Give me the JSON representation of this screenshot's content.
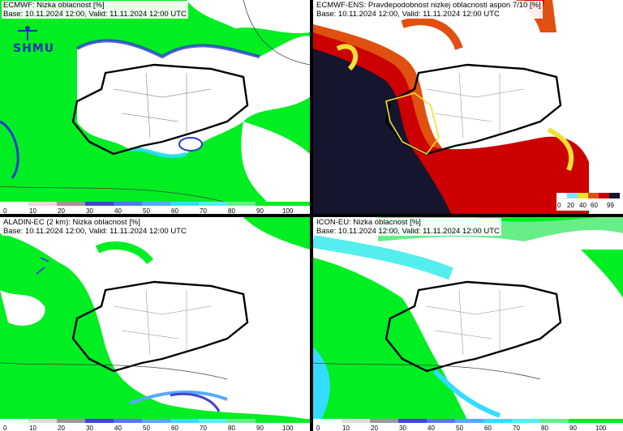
{
  "colors": {
    "cloud_green": "#00ee22",
    "cloud_white": "#ffffff",
    "blue_deep": "#2a3ad0",
    "cyan": "#22ddee",
    "border": "#000000",
    "ens_dark": "#15152e",
    "ens_red": "#cc0000",
    "ens_orange": "#e05010",
    "ens_yellow": "#f0e030"
  },
  "logo": {
    "text": "SHMU"
  },
  "panels": [
    {
      "id": "ecmwf",
      "title": "ECMWF: Nizka oblacnost [%]",
      "subtitle": "Base: 10.11.2024 12:00, Valid: 11.11.2024 12:00 UTC",
      "legend_ticks": [
        "0",
        "10",
        "20",
        "30",
        "40",
        "50",
        "60",
        "70",
        "80",
        "90",
        "100"
      ]
    },
    {
      "id": "ecmwf-ens",
      "title": "ECMWF-ENS: Pravdepodobnost nizkej oblacnosti aspon 7/10 [%]",
      "subtitle": "Base: 10.11.2024 12:00, Valid: 11.11.2024 12:00 UTC",
      "legend_ticks": [
        "0",
        "20",
        "40",
        "60",
        "99"
      ]
    },
    {
      "id": "aladin-ec",
      "title": "ALADIN-EC (2 km): Nizka oblacnost [%]",
      "subtitle": "Base: 10.11.2024 12:00, Valid: 11.11.2024 12:00 UTC",
      "legend_ticks": [
        "0",
        "10",
        "20",
        "30",
        "40",
        "50",
        "60",
        "70",
        "80",
        "90",
        "100"
      ]
    },
    {
      "id": "icon-eu",
      "title": "ICON-EU: Nizka oblacnost [%]",
      "subtitle": "Base: 10.11.2024 12:00, Valid: 11.11.2024 12:00 UTC",
      "legend_ticks": [
        "0",
        "10",
        "20",
        "30",
        "40",
        "50",
        "60",
        "70",
        "80",
        "90",
        "100"
      ]
    }
  ]
}
